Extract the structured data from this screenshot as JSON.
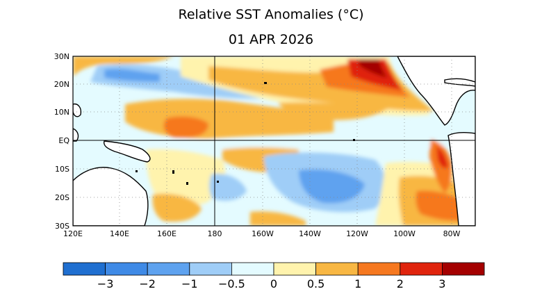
{
  "title": "Relative SST Anomalies (°C)",
  "date": "01 APR 2026",
  "lat_labels": [
    "30N",
    "20N",
    "10N",
    "EQ",
    "10S",
    "20S",
    "30S"
  ],
  "lon_labels": [
    "120E",
    "140E",
    "160E",
    "180",
    "160W",
    "140W",
    "120W",
    "100W",
    "80W"
  ],
  "colorbar": {
    "colors": [
      "#1f6fd0",
      "#3f8ae6",
      "#5ea2ef",
      "#9fcdf7",
      "#e4fbff",
      "#fff3ad",
      "#f8b743",
      "#f6781f",
      "#e0240d",
      "#a40000"
    ],
    "labels": [
      "−3",
      "−2",
      "−1",
      "−0.5",
      "0",
      "0.5",
      "1",
      "2",
      "3"
    ]
  },
  "regions": {
    "ocean_base": "neutral",
    "north_west_band": "negative",
    "central_north_band": "positive",
    "north_east_peak": "strong positive",
    "south_central_pool": "negative",
    "peru_coast": "positive",
    "south_east_pacific": "positive"
  }
}
